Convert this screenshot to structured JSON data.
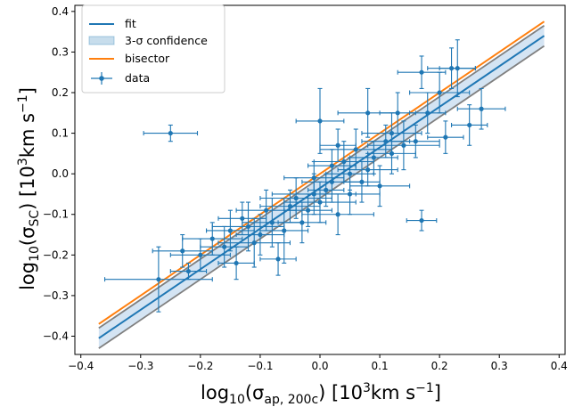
{
  "chart_data": {
    "type": "scatter",
    "x_label_prefix": "log",
    "x_label_sub": "10",
    "x_label_sigma": "(σ",
    "x_label_sigma_sub": "ap, 200c",
    "x_label_units": ") [10",
    "x_label_units_sup": "3",
    "x_label_units_end": "km s",
    "x_label_exp": "−1",
    "x_label_close": "]",
    "y_label_prefix": "log",
    "y_label_sub": "10",
    "y_label_sigma": "(σ",
    "y_label_sigma_sub": "SC",
    "y_label_units": ") [10",
    "y_label_units_sup": "3",
    "y_label_units_end": "km s",
    "y_label_exp": "−1",
    "y_label_close": "]",
    "xlim": [
      -0.41,
      0.41
    ],
    "ylim": [
      -0.445,
      0.415
    ],
    "x_ticks": [
      -0.4,
      -0.3,
      -0.2,
      -0.1,
      0.0,
      0.1,
      0.2,
      0.3,
      0.4
    ],
    "x_tick_labels": [
      "−0.4",
      "−0.3",
      "−0.2",
      "−0.1",
      "0.0",
      "0.1",
      "0.2",
      "0.3",
      "0.4"
    ],
    "y_ticks": [
      -0.4,
      -0.3,
      -0.2,
      -0.1,
      0.0,
      0.1,
      0.2,
      0.3,
      0.4
    ],
    "y_tick_labels": [
      "−0.4",
      "−0.3",
      "−0.2",
      "−0.1",
      "0.0",
      "0.1",
      "0.2",
      "0.3",
      "0.4"
    ],
    "legend": {
      "placement": "top-left",
      "entries": [
        {
          "label": "fit",
          "kind": "line",
          "color": "#1f77b4"
        },
        {
          "label": "3-σ confidence",
          "kind": "patch",
          "color": "#1f77b4"
        },
        {
          "label": "bisector",
          "kind": "line",
          "color": "#ff7f0e"
        },
        {
          "label": "data",
          "kind": "errorbar",
          "color": "#1f77b4"
        }
      ]
    },
    "fit": {
      "x": [
        -0.37,
        0.375
      ],
      "y": [
        -0.405,
        0.34
      ],
      "color": "#1f77b4"
    },
    "confidence_band": {
      "upper": [
        -0.38,
        0.365
      ],
      "lower": [
        -0.43,
        0.315
      ],
      "edge_color": "#808080",
      "fill": "#c6dbef"
    },
    "bisector": {
      "x": [
        -0.37,
        0.375
      ],
      "y": [
        -0.37,
        0.375
      ],
      "color": "#ff7f0e"
    },
    "data_color": "#1f77b4",
    "points": [
      {
        "x": -0.25,
        "y": 0.1,
        "xerr": 0.045,
        "yerr": 0.02
      },
      {
        "x": -0.27,
        "y": -0.26,
        "xerr": 0.09,
        "yerr": 0.08
      },
      {
        "x": -0.22,
        "y": -0.24,
        "xerr": 0.03,
        "yerr": 0.02
      },
      {
        "x": -0.18,
        "y": -0.16,
        "xerr": 0.05,
        "yerr": 0.04
      },
      {
        "x": -0.15,
        "y": -0.14,
        "xerr": 0.04,
        "yerr": 0.05
      },
      {
        "x": -0.12,
        "y": -0.13,
        "xerr": 0.06,
        "yerr": 0.06
      },
      {
        "x": -0.1,
        "y": -0.15,
        "xerr": 0.04,
        "yerr": 0.05
      },
      {
        "x": -0.08,
        "y": -0.12,
        "xerr": 0.05,
        "yerr": 0.06
      },
      {
        "x": -0.07,
        "y": -0.21,
        "xerr": 0.03,
        "yerr": 0.04
      },
      {
        "x": -0.06,
        "y": -0.14,
        "xerr": 0.04,
        "yerr": 0.08
      },
      {
        "x": -0.05,
        "y": -0.08,
        "xerr": 0.05,
        "yerr": 0.04
      },
      {
        "x": -0.04,
        "y": -0.06,
        "xerr": 0.06,
        "yerr": 0.05
      },
      {
        "x": -0.02,
        "y": -0.09,
        "xerr": 0.04,
        "yerr": 0.04
      },
      {
        "x": -0.01,
        "y": -0.05,
        "xerr": 0.07,
        "yerr": 0.05
      },
      {
        "x": 0.0,
        "y": 0.13,
        "xerr": 0.04,
        "yerr": 0.08
      },
      {
        "x": 0.01,
        "y": -0.04,
        "xerr": 0.03,
        "yerr": 0.04
      },
      {
        "x": 0.02,
        "y": -0.02,
        "xerr": 0.05,
        "yerr": 0.05
      },
      {
        "x": 0.03,
        "y": -0.1,
        "xerr": 0.06,
        "yerr": 0.05
      },
      {
        "x": 0.04,
        "y": 0.03,
        "xerr": 0.05,
        "yerr": 0.05
      },
      {
        "x": 0.05,
        "y": 0.0,
        "xerr": 0.04,
        "yerr": 0.04
      },
      {
        "x": 0.06,
        "y": 0.06,
        "xerr": 0.06,
        "yerr": 0.05
      },
      {
        "x": 0.07,
        "y": -0.02,
        "xerr": 0.03,
        "yerr": 0.05
      },
      {
        "x": 0.08,
        "y": 0.15,
        "xerr": 0.05,
        "yerr": 0.06
      },
      {
        "x": 0.09,
        "y": 0.04,
        "xerr": 0.04,
        "yerr": 0.04
      },
      {
        "x": 0.1,
        "y": -0.03,
        "xerr": 0.05,
        "yerr": 0.05
      },
      {
        "x": 0.11,
        "y": 0.08,
        "xerr": 0.04,
        "yerr": 0.04
      },
      {
        "x": 0.12,
        "y": 0.1,
        "xerr": 0.05,
        "yerr": 0.05
      },
      {
        "x": 0.13,
        "y": 0.15,
        "xerr": 0.03,
        "yerr": 0.05
      },
      {
        "x": 0.14,
        "y": 0.07,
        "xerr": 0.06,
        "yerr": 0.06
      },
      {
        "x": 0.16,
        "y": 0.08,
        "xerr": 0.04,
        "yerr": 0.04
      },
      {
        "x": 0.17,
        "y": -0.115,
        "xerr": 0.025,
        "yerr": 0.025
      },
      {
        "x": 0.17,
        "y": 0.25,
        "xerr": 0.04,
        "yerr": 0.04
      },
      {
        "x": 0.18,
        "y": 0.15,
        "xerr": 0.03,
        "yerr": 0.05
      },
      {
        "x": 0.2,
        "y": 0.2,
        "xerr": 0.05,
        "yerr": 0.05
      },
      {
        "x": 0.21,
        "y": 0.09,
        "xerr": 0.03,
        "yerr": 0.04
      },
      {
        "x": 0.22,
        "y": 0.26,
        "xerr": 0.04,
        "yerr": 0.05
      },
      {
        "x": 0.23,
        "y": 0.26,
        "xerr": 0.03,
        "yerr": 0.07
      },
      {
        "x": 0.25,
        "y": 0.12,
        "xerr": 0.03,
        "yerr": 0.05
      },
      {
        "x": 0.27,
        "y": 0.16,
        "xerr": 0.04,
        "yerr": 0.05
      },
      {
        "x": -0.2,
        "y": -0.2,
        "xerr": 0.05,
        "yerr": 0.04
      },
      {
        "x": -0.16,
        "y": -0.18,
        "xerr": 0.04,
        "yerr": 0.05
      },
      {
        "x": -0.13,
        "y": -0.11,
        "xerr": 0.04,
        "yerr": 0.04
      },
      {
        "x": -0.11,
        "y": -0.17,
        "xerr": 0.06,
        "yerr": 0.06
      },
      {
        "x": -0.09,
        "y": -0.09,
        "xerr": 0.05,
        "yerr": 0.05
      },
      {
        "x": -0.03,
        "y": -0.12,
        "xerr": 0.04,
        "yerr": 0.05
      },
      {
        "x": 0.0,
        "y": -0.07,
        "xerr": 0.06,
        "yerr": 0.05
      },
      {
        "x": 0.02,
        "y": 0.02,
        "xerr": 0.04,
        "yerr": 0.04
      },
      {
        "x": 0.05,
        "y": -0.05,
        "xerr": 0.05,
        "yerr": 0.05
      },
      {
        "x": 0.08,
        "y": 0.01,
        "xerr": 0.05,
        "yerr": 0.04
      },
      {
        "x": 0.12,
        "y": 0.05,
        "xerr": 0.04,
        "yerr": 0.05
      },
      {
        "x": -0.23,
        "y": -0.19,
        "xerr": 0.05,
        "yerr": 0.04
      },
      {
        "x": -0.14,
        "y": -0.22,
        "xerr": 0.03,
        "yerr": 0.04
      },
      {
        "x": -0.01,
        "y": -0.01,
        "xerr": 0.05,
        "yerr": 0.04
      },
      {
        "x": 0.03,
        "y": 0.07,
        "xerr": 0.03,
        "yerr": 0.04
      }
    ]
  }
}
